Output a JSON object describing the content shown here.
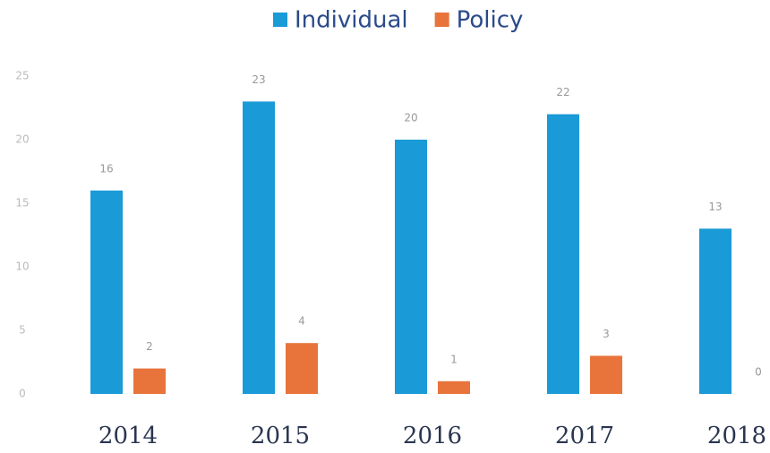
{
  "chart_data": {
    "type": "bar",
    "categories": [
      "2014",
      "2015",
      "2016",
      "2017",
      "2018"
    ],
    "series": [
      {
        "name": "Individual",
        "color": "#1a9ad6",
        "values": [
          16,
          23,
          20,
          22,
          13
        ]
      },
      {
        "name": "Policy",
        "color": "#e8743b",
        "values": [
          2,
          4,
          1,
          3,
          0
        ]
      }
    ],
    "ylim": [
      0,
      25
    ],
    "yticks": [
      0,
      5,
      10,
      15,
      20,
      25
    ],
    "grid": false,
    "legend": "top"
  }
}
